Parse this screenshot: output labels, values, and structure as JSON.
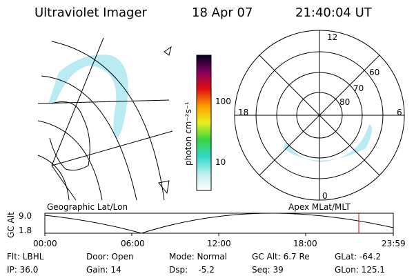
{
  "header": {
    "title": "Ultraviolet Imager",
    "date": "18 Apr 07",
    "time": "21:40:04 UT"
  },
  "geo_panel": {
    "label": "Geographic Lat/Lon"
  },
  "colorbar": {
    "label": "photon cm⁻²s⁻¹",
    "ticks": [
      "100",
      "10"
    ]
  },
  "polar_panel": {
    "label": "Apex MLat/MLT",
    "mlt_labels": [
      "12",
      "18",
      "6",
      "0"
    ],
    "lat_labels": [
      "60",
      "70",
      "80"
    ]
  },
  "altitude": {
    "axis_label": "GC Alt",
    "ticks": [
      "9.0",
      "1.8"
    ],
    "times": [
      "00:00",
      "06:00",
      "12:00",
      "18:00",
      "23:59"
    ]
  },
  "info": {
    "rows": [
      [
        "Flt: LBHL",
        "Door: Open",
        "Mode: Normal",
        "GC Alt: 6.7 Re",
        "GLat: -64.2"
      ],
      [
        "IP: 36.0",
        "Gain: 14",
        "Dsp:    -5.2",
        "Seq: 39",
        "GLon: 125.1"
      ]
    ]
  }
}
